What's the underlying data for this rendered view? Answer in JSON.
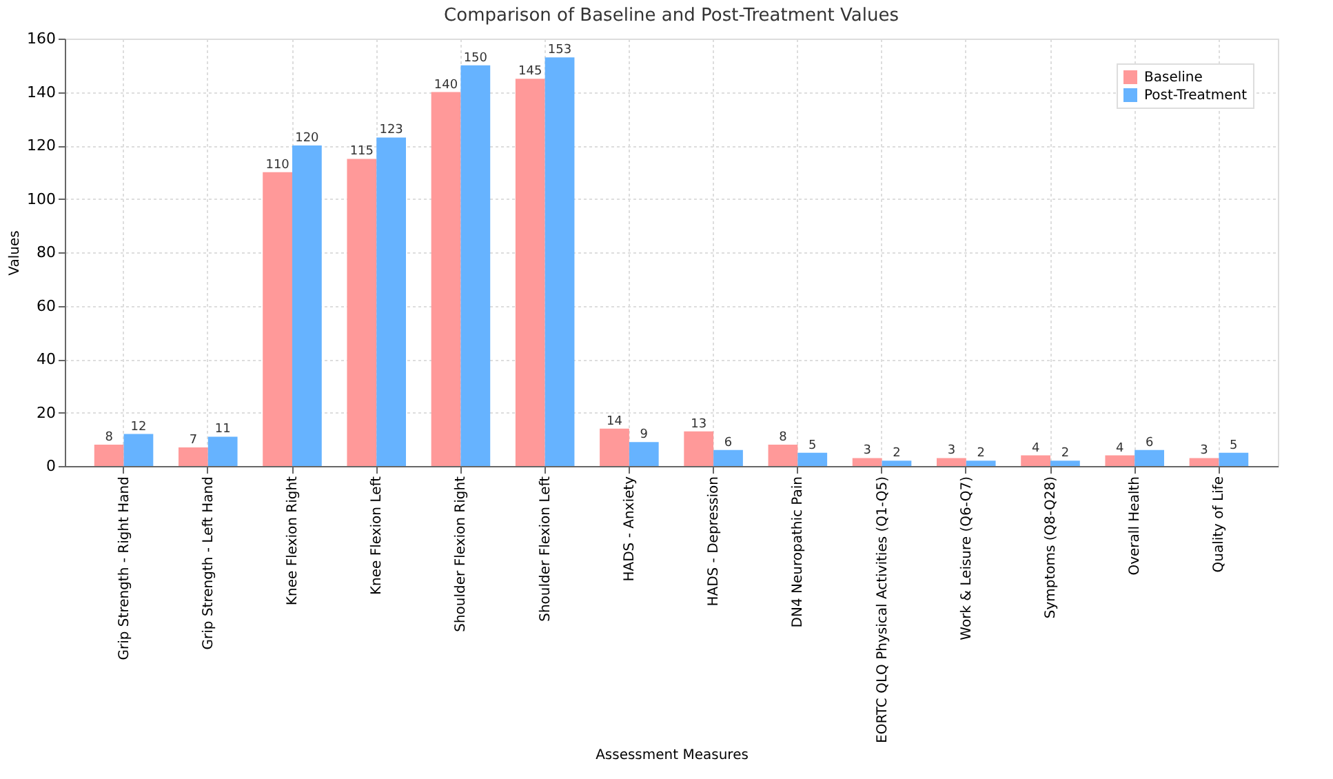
{
  "chart_data": {
    "type": "bar",
    "title": "Comparison of Baseline and Post-Treatment Values",
    "xlabel": "Assessment Measures",
    "ylabel": "Values",
    "categories": [
      "Grip Strength - Right Hand",
      "Grip Strength - Left Hand",
      "Knee Flexion Right",
      "Knee Flexion Left",
      "Shoulder Flexion Right",
      "Shoulder Flexion Left",
      "HADS - Anxiety",
      "HADS - Depression",
      "DN4 Neuropathic Pain",
      "EORTC QLQ Physical Activities (Q1-Q5)",
      "Work & Leisure (Q6-Q7)",
      "Symptoms (Q8-Q28)",
      "Overall Health",
      "Quality of Life"
    ],
    "series": [
      {
        "name": "Baseline",
        "color": "#ff9999",
        "values": [
          8,
          7,
          110,
          115,
          140,
          145,
          14,
          13,
          8,
          3,
          3,
          4,
          4,
          3
        ]
      },
      {
        "name": "Post-Treatment",
        "color": "#66b3ff",
        "values": [
          12,
          11,
          120,
          123,
          150,
          153,
          9,
          6,
          5,
          2,
          2,
          2,
          6,
          5
        ]
      }
    ],
    "ylim": [
      0,
      160
    ],
    "yticks": [
      0,
      20,
      40,
      60,
      80,
      100,
      120,
      140,
      160
    ],
    "grid": true,
    "legend": "top right",
    "data_labels": true
  }
}
